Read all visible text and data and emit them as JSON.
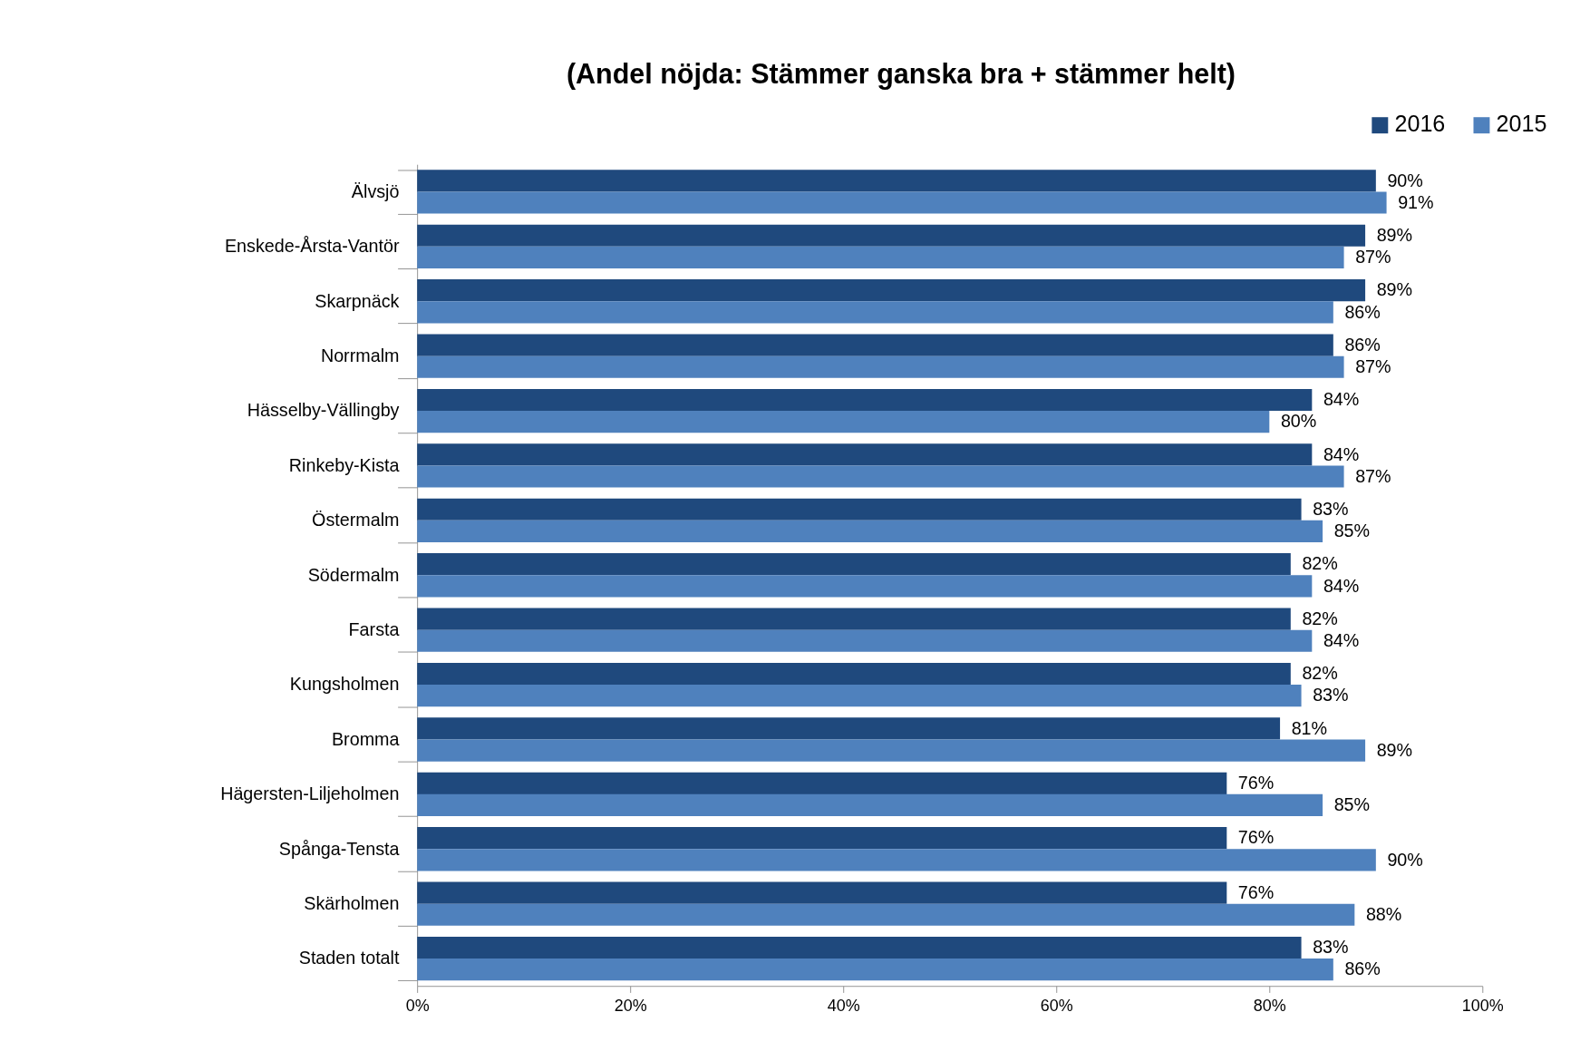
{
  "chart_data": {
    "type": "bar",
    "orientation": "horizontal",
    "title": "(Andel nöjda: Stämmer ganska bra + stämmer helt)",
    "categories": [
      "Älvsjö",
      "Enskede-Årsta-Vantör",
      "Skarpnäck",
      "Norrmalm",
      "Hässelby-Vällingby",
      "Rinkeby-Kista",
      "Östermalm",
      "Södermalm",
      "Farsta",
      "Kungsholmen",
      "Bromma",
      "Hägersten-Liljeholmen",
      "Spånga-Tensta",
      "Skärholmen",
      "Staden totalt"
    ],
    "series": [
      {
        "name": "2016",
        "color": "#1f497d",
        "values": [
          90,
          89,
          89,
          86,
          84,
          84,
          83,
          82,
          82,
          82,
          81,
          76,
          76,
          76,
          83
        ],
        "value_labels": [
          "90%",
          "89%",
          "89%",
          "86%",
          "84%",
          "84%",
          "83%",
          "82%",
          "82%",
          "82%",
          "81%",
          "76%",
          "76%",
          "76%",
          "83%"
        ]
      },
      {
        "name": "2015",
        "color": "#4f81bd",
        "values": [
          91,
          87,
          86,
          87,
          80,
          87,
          85,
          84,
          84,
          83,
          89,
          85,
          90,
          88,
          86
        ],
        "value_labels": [
          "91%",
          "87%",
          "86%",
          "87%",
          "80%",
          "87%",
          "85%",
          "84%",
          "84%",
          "83%",
          "89%",
          "85%",
          "90%",
          "88%",
          "86%"
        ]
      }
    ],
    "xlim": [
      0,
      100
    ],
    "xticks": [
      {
        "value": 0,
        "label": "0%"
      },
      {
        "value": 20,
        "label": "20%"
      },
      {
        "value": 40,
        "label": "40%"
      },
      {
        "value": 60,
        "label": "60%"
      },
      {
        "value": 80,
        "label": "80%"
      },
      {
        "value": 100,
        "label": "100%"
      }
    ],
    "grid": false,
    "legend": "top right"
  }
}
